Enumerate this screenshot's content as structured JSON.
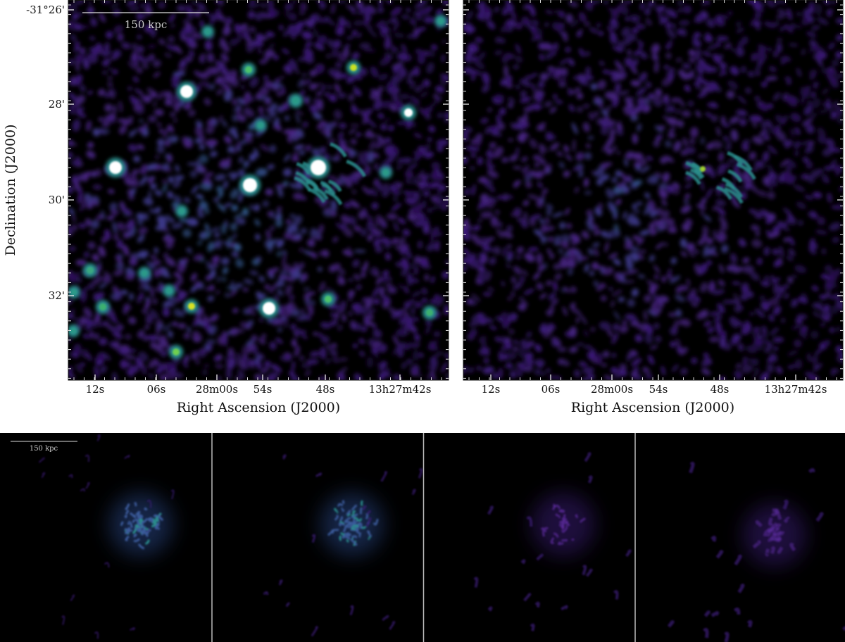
{
  "top_panels": [
    {
      "x_label": "Right Ascension (J2000)",
      "y_label": "Declination (J2000)",
      "x_ticks": [
        "12s",
        "06s",
        "28m00s",
        "54s",
        "48s",
        "13h27m42s"
      ],
      "y_ticks": [
        "-31°26'",
        "28'",
        "30'",
        "32'"
      ],
      "scale_bar": "150 kpc"
    },
    {
      "x_label": "Right Ascension (J2000)",
      "x_ticks": [
        "12s",
        "06s",
        "28m00s",
        "54s",
        "48s",
        "13h27m42s"
      ]
    }
  ],
  "bottom_panels": {
    "scale_bar": "150 kpc"
  }
}
